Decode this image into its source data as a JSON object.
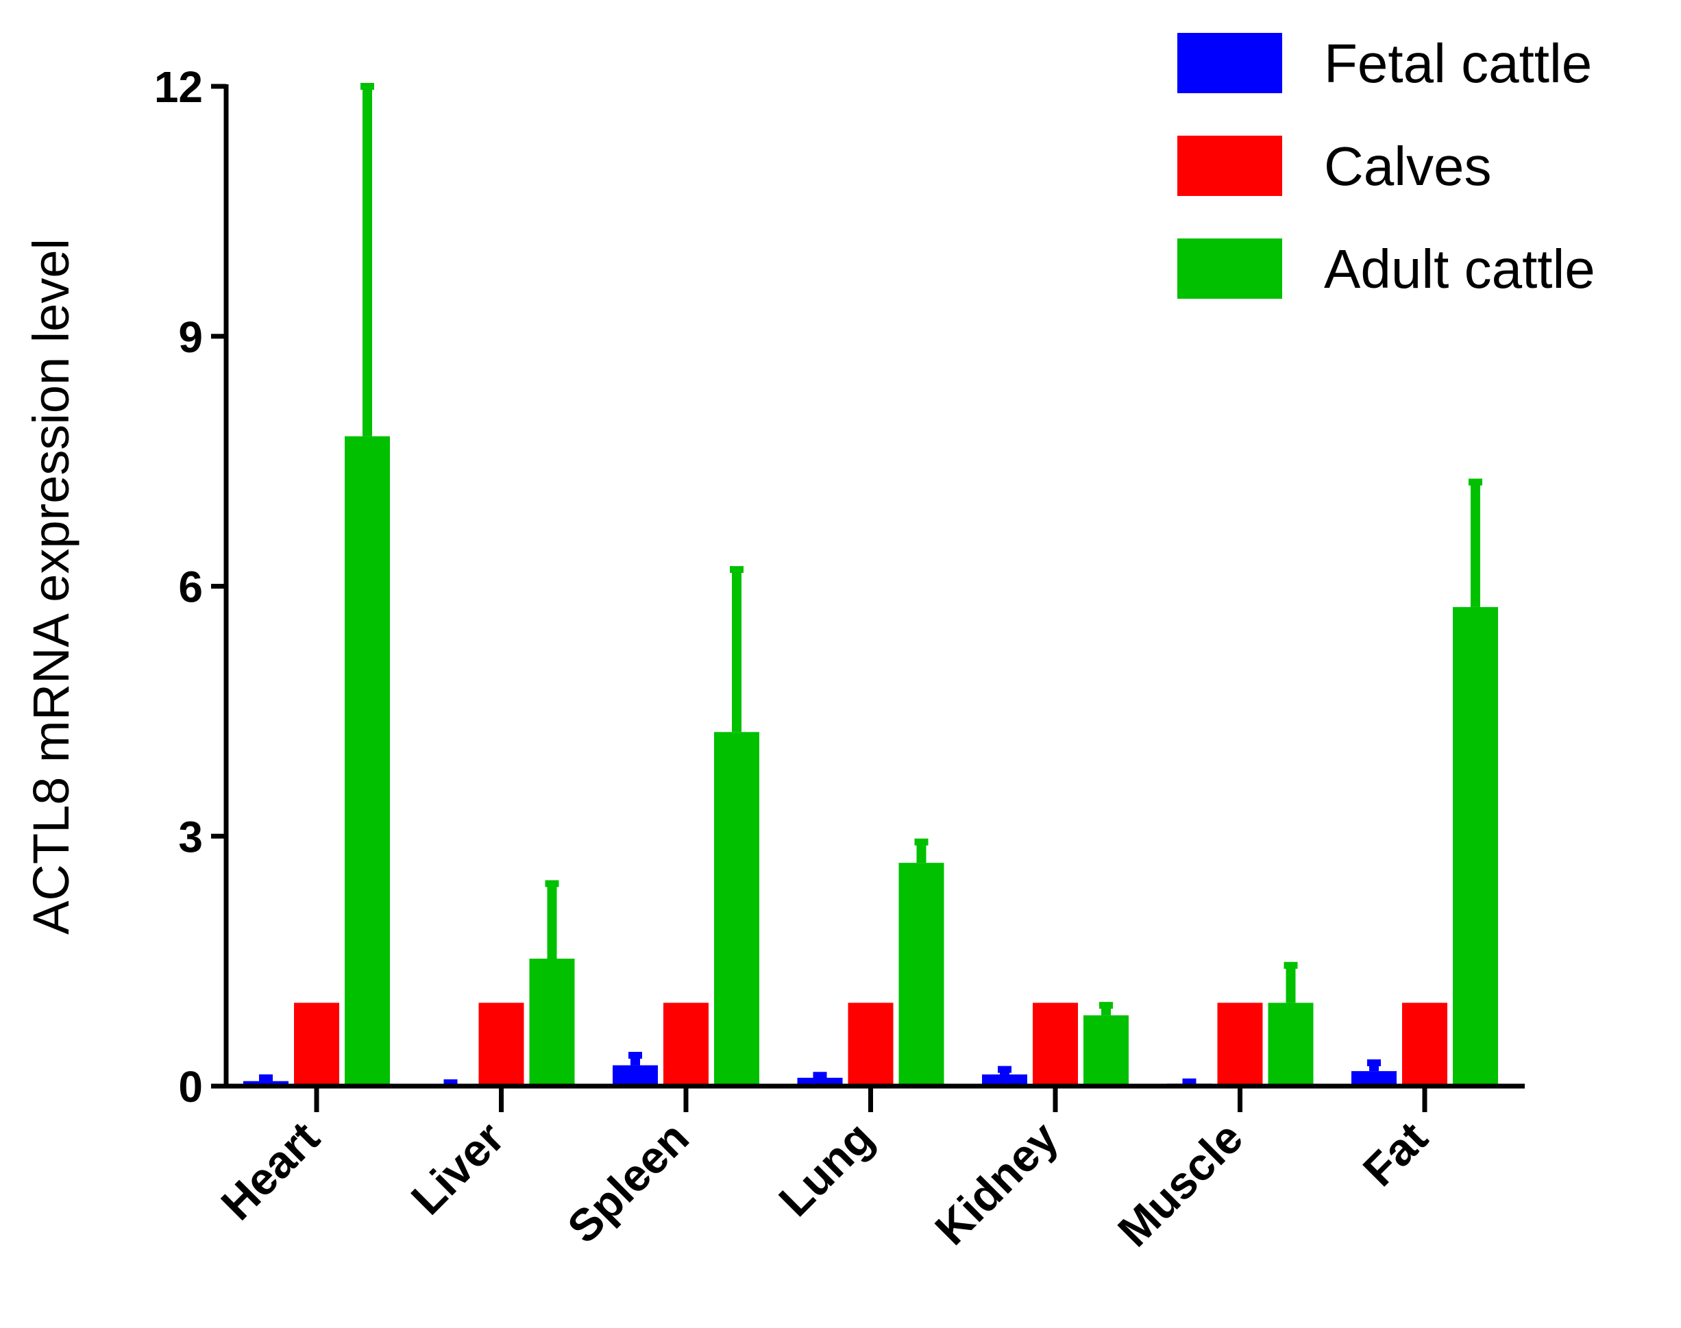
{
  "chart_data": {
    "type": "bar",
    "title": "",
    "xlabel": "",
    "ylabel": "ACTL8 mRNA expression level",
    "ylim": [
      0,
      12
    ],
    "yticks": [
      0,
      3,
      6,
      9,
      12
    ],
    "categories": [
      "Heart",
      "Liver",
      "Spleen",
      "Lung",
      "Kidney",
      "Muscle",
      "Fat"
    ],
    "legend_position": "top-right",
    "series": [
      {
        "name": "Fetal cattle",
        "color": "#0000ff",
        "values": [
          0.06,
          0.02,
          0.25,
          0.1,
          0.14,
          0.03,
          0.18
        ],
        "errors": [
          0.04,
          0.02,
          0.12,
          0.03,
          0.06,
          0.02,
          0.1
        ]
      },
      {
        "name": "Calves",
        "color": "#ff0000",
        "values": [
          1.0,
          1.0,
          1.0,
          1.0,
          1.0,
          1.0,
          1.0
        ],
        "errors": [
          0,
          0,
          0,
          0,
          0,
          0,
          0
        ]
      },
      {
        "name": "Adult cattle",
        "color": "#00c000",
        "values": [
          7.8,
          1.53,
          4.25,
          2.68,
          0.85,
          1.0,
          5.75
        ],
        "errors": [
          4.2,
          0.9,
          1.95,
          0.25,
          0.12,
          0.45,
          1.5
        ]
      }
    ]
  }
}
